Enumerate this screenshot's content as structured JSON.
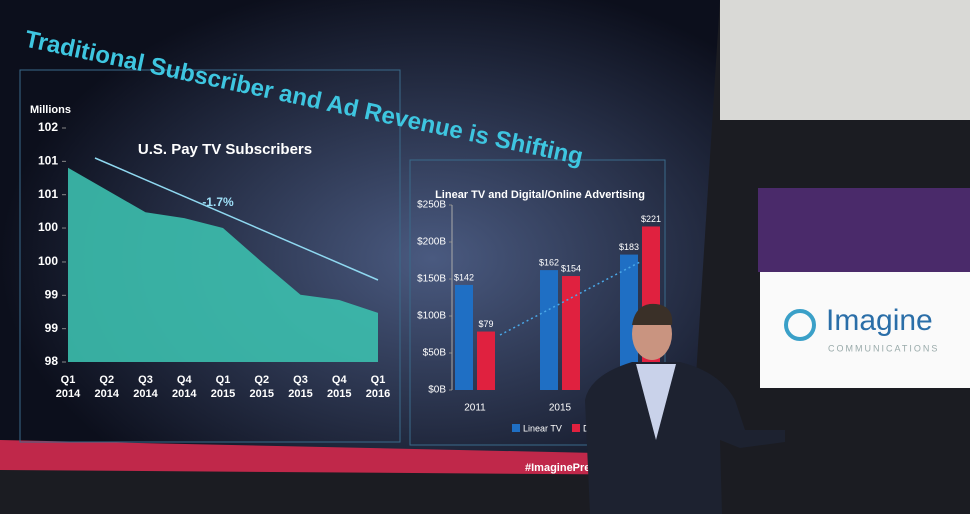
{
  "slide_title": "Traditional Subscriber and Ad Revenue is Shifting",
  "hashtag": "#ImaginePress",
  "logo": {
    "name": "Imagine",
    "tagline": "COMMUNICATIONS"
  },
  "chart_data": [
    {
      "type": "area",
      "title": "U.S. Pay TV Subscribers",
      "y_label": "Millions",
      "categories": [
        "Q1 2014",
        "Q2 2014",
        "Q3 2014",
        "Q4 2014",
        "Q1 2015",
        "Q2 2015",
        "Q3 2015",
        "Q4 2015",
        "Q1 2016"
      ],
      "values": [
        101.32,
        100.94,
        100.56,
        100.46,
        100.29,
        99.71,
        99.15,
        99.06,
        98.84
      ],
      "color": "#3cbfae",
      "ylim": [
        98,
        102
      ],
      "yticks": [
        98,
        {
          "value": 98.57,
          "label": "99"
        },
        {
          "value": 99.14,
          "label": "99"
        },
        {
          "value": 99.71,
          "label": "100"
        },
        {
          "value": 100.29,
          "label": "100"
        },
        {
          "value": 100.86,
          "label": "101"
        },
        {
          "value": 101.43,
          "label": "101"
        },
        102
      ],
      "annotation": "-1.7%"
    },
    {
      "type": "bar",
      "title": "Linear TV and Digital/Online Advertising",
      "categories": [
        "2011",
        "2015",
        null
      ],
      "series": [
        {
          "name": "Linear TV",
          "color": "#1f6fc4",
          "values": [
            142,
            162,
            183
          ],
          "value_labels": [
            "$142",
            "$162",
            "$183"
          ]
        },
        {
          "name": "Digital/Online",
          "color": "#e0213f",
          "values": [
            79,
            154,
            221
          ],
          "value_labels": [
            "$79",
            "$154",
            "$221"
          ]
        }
      ],
      "ylim": [
        0,
        250
      ],
      "yticks": [
        {
          "value": 0,
          "label": "$0B"
        },
        {
          "value": 50,
          "label": "$50B"
        },
        {
          "value": 100,
          "label": "$100B"
        },
        {
          "value": 150,
          "label": "$150B"
        },
        {
          "value": 200,
          "label": "$200B"
        },
        {
          "value": 250,
          "label": "$250B"
        }
      ]
    }
  ]
}
